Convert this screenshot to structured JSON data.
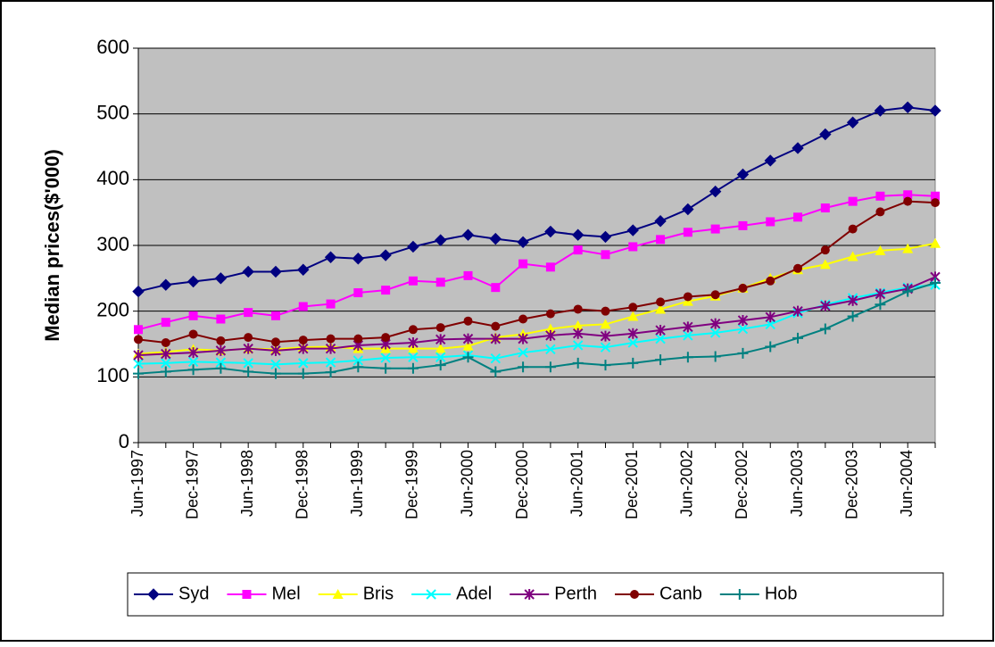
{
  "chart_data": {
    "type": "line",
    "y_label": "Median prices($'000)",
    "categories": [
      "Jun-1997",
      null,
      "Dec-1997",
      null,
      "Jun-1998",
      null,
      "Dec-1998",
      null,
      "Jun-1999",
      null,
      "Dec-1999",
      null,
      "Jun-2000",
      null,
      "Dec-2000",
      null,
      "Jun-2001",
      null,
      "Dec-2001",
      null,
      "Jun-2002",
      null,
      "Dec-2002",
      null,
      "Jun-2003",
      null,
      "Dec-2003",
      null,
      "Jun-2004",
      null
    ],
    "ylim": [
      0,
      600
    ],
    "yticks": [
      0,
      100,
      200,
      300,
      400,
      500,
      600
    ],
    "grid": true,
    "legend": "bottom",
    "series": [
      {
        "name": "Syd",
        "color": "#000080",
        "marker": "diamond",
        "values": [
          230,
          240,
          245,
          250,
          260,
          260,
          263,
          282,
          280,
          285,
          298,
          308,
          316,
          310,
          305,
          321,
          316,
          313,
          323,
          337,
          355,
          382,
          408,
          429,
          448,
          469,
          487,
          505,
          510,
          505
        ]
      },
      {
        "name": "Mel",
        "color": "#ff00ff",
        "marker": "square",
        "values": [
          172,
          183,
          193,
          188,
          198,
          193,
          207,
          211,
          228,
          232,
          246,
          244,
          254,
          236,
          272,
          267,
          293,
          286,
          298,
          309,
          320,
          325,
          330,
          336,
          343,
          357,
          367,
          375,
          377,
          375
        ]
      },
      {
        "name": "Bris",
        "color": "#ffff00",
        "marker": "triangle",
        "values": [
          135,
          138,
          142,
          140,
          143,
          142,
          145,
          146,
          143,
          143,
          143,
          143,
          147,
          160,
          165,
          173,
          178,
          180,
          192,
          203,
          215,
          223,
          235,
          250,
          263,
          271,
          283,
          292,
          295,
          303
        ]
      },
      {
        "name": "Adel",
        "color": "#00ffff",
        "marker": "x",
        "values": [
          120,
          121,
          123,
          122,
          121,
          119,
          121,
          122,
          125,
          129,
          130,
          130,
          133,
          128,
          137,
          142,
          148,
          145,
          152,
          158,
          163,
          167,
          173,
          180,
          197,
          210,
          220,
          228,
          236,
          240
        ]
      },
      {
        "name": "Perth",
        "color": "#800080",
        "marker": "star",
        "values": [
          133,
          135,
          137,
          140,
          143,
          140,
          143,
          143,
          148,
          150,
          152,
          157,
          158,
          158,
          158,
          163,
          166,
          162,
          166,
          171,
          176,
          181,
          186,
          191,
          200,
          208,
          216,
          226,
          234,
          252
        ]
      },
      {
        "name": "Canb",
        "color": "#800000",
        "marker": "circle",
        "values": [
          157,
          152,
          165,
          155,
          160,
          153,
          156,
          158,
          158,
          160,
          172,
          175,
          185,
          177,
          188,
          196,
          203,
          200,
          206,
          214,
          222,
          225,
          235,
          246,
          265,
          293,
          325,
          351,
          367,
          365
        ]
      },
      {
        "name": "Hob",
        "color": "#008080",
        "marker": "plus",
        "values": [
          105,
          108,
          111,
          113,
          108,
          105,
          105,
          107,
          115,
          113,
          113,
          118,
          130,
          108,
          115,
          115,
          121,
          118,
          121,
          126,
          130,
          131,
          136,
          146,
          159,
          173,
          192,
          210,
          230,
          243
        ]
      }
    ]
  }
}
